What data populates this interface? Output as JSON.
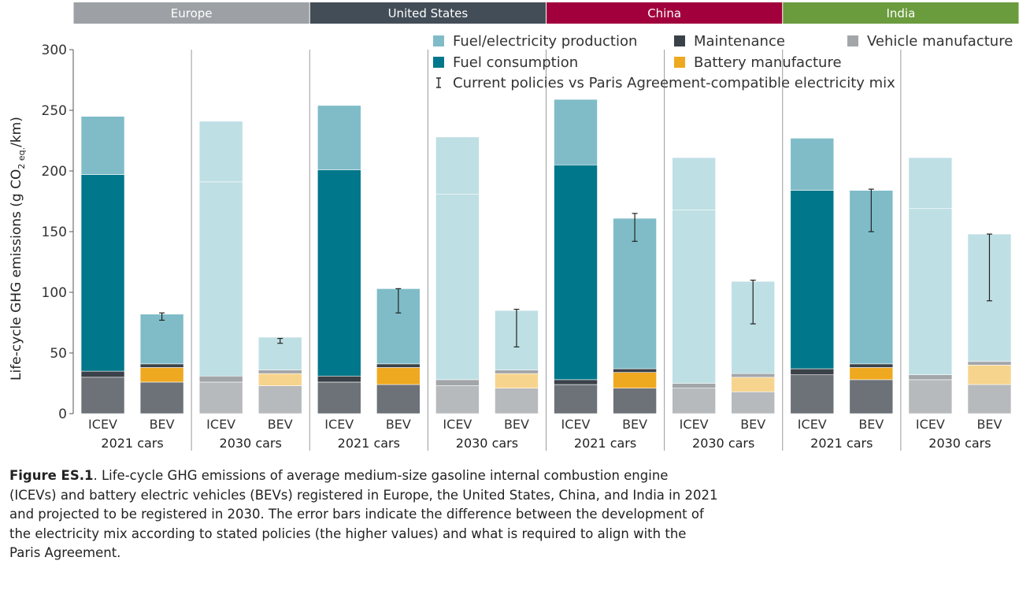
{
  "chart_data": {
    "type": "bar",
    "stacked": true,
    "ylabel_main": "Life-cycle GHG emissions (g CO",
    "ylabel_sub": "2 eq.",
    "ylabel_end": "/km)",
    "ylim": [
      0,
      300
    ],
    "yticks": [
      "0",
      "50",
      "100",
      "150",
      "200",
      "250",
      "300"
    ],
    "regions": [
      {
        "name": "Europe",
        "color": "#9da1a5"
      },
      {
        "name": "United States",
        "color": "#434d57"
      },
      {
        "name": "China",
        "color": "#a1003c"
      },
      {
        "name": "India",
        "color": "#6a9b3d"
      }
    ],
    "groups": [
      {
        "label": "2021 cars",
        "region": "Europe"
      },
      {
        "label": "2030 cars",
        "region": "Europe"
      },
      {
        "label": "2021 cars",
        "region": "United States"
      },
      {
        "label": "2030 cars",
        "region": "United States"
      },
      {
        "label": "2021 cars",
        "region": "China"
      },
      {
        "label": "2030 cars",
        "region": "China"
      },
      {
        "label": "2021 cars",
        "region": "India"
      },
      {
        "label": "2030 cars",
        "region": "India"
      }
    ],
    "categories": [
      "ICEV",
      "BEV",
      "ICEV",
      "BEV",
      "ICEV",
      "BEV",
      "ICEV",
      "BEV",
      "ICEV",
      "BEV",
      "ICEV",
      "BEV",
      "ICEV",
      "BEV",
      "ICEV",
      "BEV"
    ],
    "series": [
      {
        "name": "Vehicle manufacture",
        "color": "#6d7279",
        "color_2030": "#b7babc",
        "values": [
          30,
          26,
          26,
          23,
          26,
          24,
          23,
          21,
          24,
          21,
          21,
          18,
          32,
          28,
          28,
          24
        ]
      },
      {
        "name": "Battery manufacture",
        "color": "#eea920",
        "color_2030": "#f7d48e",
        "values": [
          0,
          12,
          0,
          10,
          0,
          14,
          0,
          12,
          0,
          13,
          0,
          12,
          0,
          10,
          0,
          16
        ]
      },
      {
        "name": "Maintenance",
        "color": "#3b4148",
        "color_2030": "#a3a6a9",
        "values": [
          5,
          3,
          5,
          3,
          5,
          3,
          5,
          3,
          4,
          3,
          4,
          3,
          5,
          3,
          4,
          3
        ]
      },
      {
        "name": "Fuel consumption",
        "color": "#00778a",
        "color_2030": "#00778a",
        "values": [
          162,
          0,
          0,
          0,
          170,
          0,
          0,
          0,
          177,
          0,
          0,
          0,
          147,
          0,
          0,
          0
        ]
      },
      {
        "name": "Fuel/electricity production",
        "color": "#7fbcc8",
        "color_2030": "#bedfe4",
        "values": [
          48,
          41,
          160,
          27,
          53,
          62,
          153,
          49,
          54,
          124,
          143,
          76,
          43,
          143,
          137,
          105
        ]
      },
      {
        "name": "Fuel/electricity production (upper)",
        "color": "#bedfe4",
        "color_2030": "#bedfe4",
        "values": [
          0,
          0,
          50,
          0,
          0,
          0,
          47,
          0,
          0,
          0,
          43,
          0,
          0,
          0,
          42,
          0
        ]
      }
    ],
    "error_bars": [
      null,
      {
        "low": 77,
        "high": 83
      },
      null,
      {
        "low": 58,
        "high": 62
      },
      null,
      {
        "low": 83,
        "high": 103
      },
      null,
      {
        "low": 55,
        "high": 86
      },
      null,
      {
        "low": 142,
        "high": 165
      },
      null,
      {
        "low": 74,
        "high": 110
      },
      null,
      {
        "low": 150,
        "high": 185
      },
      null,
      {
        "low": 93,
        "high": 148
      }
    ],
    "legend": [
      {
        "label": "Fuel/electricity production",
        "color": "#7fbcc8",
        "marker": "square"
      },
      {
        "label": "Maintenance",
        "color": "#3b4148",
        "marker": "square"
      },
      {
        "label": "Vehicle manufacture",
        "color": "#a3a6a9",
        "marker": "square"
      },
      {
        "label": "Fuel consumption",
        "color": "#00778a",
        "marker": "square"
      },
      {
        "label": "Battery manufacture",
        "color": "#eea920",
        "marker": "square"
      },
      {
        "label": "Current policies vs Paris Agreement-compatible electricity mix",
        "color": "#222222",
        "marker": "errorbar"
      }
    ],
    "legend_position": "top-right",
    "grid": false
  },
  "caption": {
    "label": "Figure ES.1",
    "text": ". Life-cycle GHG emissions of average medium-size gasoline internal combustion engine (ICEVs) and battery electric vehicles (BEVs) registered in Europe, the United States, China, and India in 2021 and projected to be registered in 2030. The error bars indicate the difference between the development of the electricity mix according to stated policies (the higher values) and what is required to align with the Paris Agreement."
  }
}
